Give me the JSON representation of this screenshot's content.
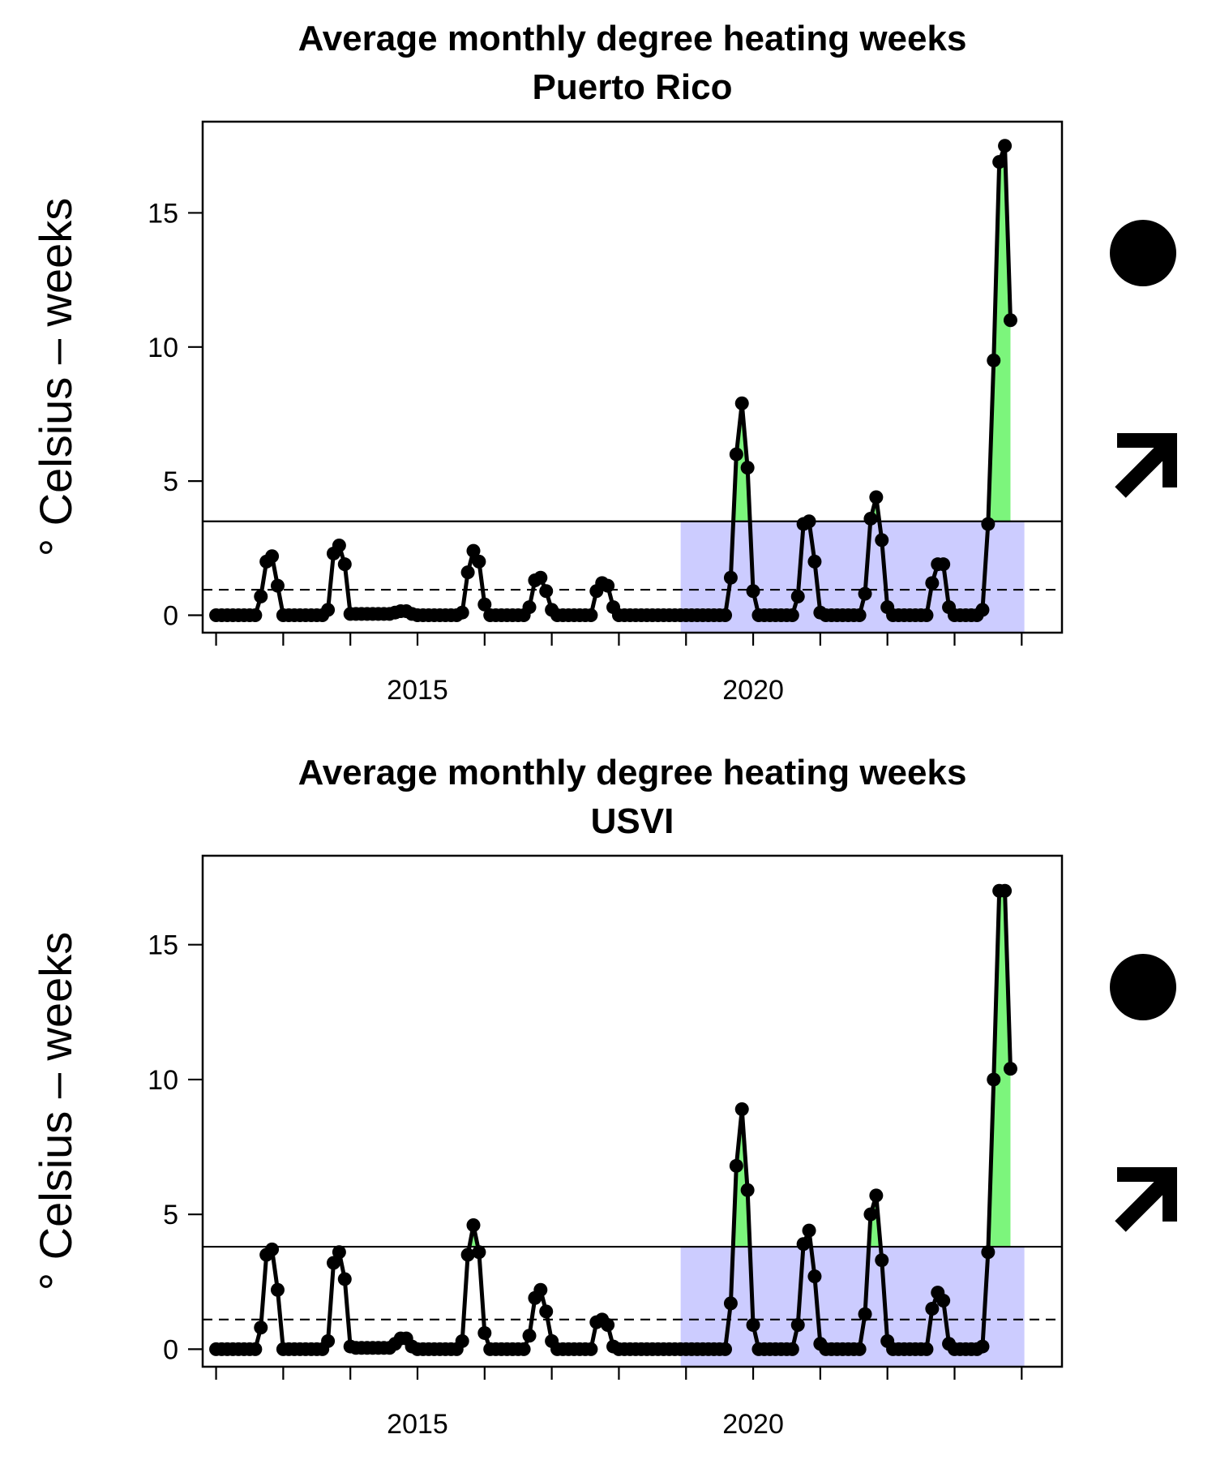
{
  "chart_data": [
    {
      "type": "line",
      "title": "Average monthly degree heating weeks",
      "subtitle": "Puerto Rico",
      "xlabel": "",
      "ylabel": "° Celsius – weeks",
      "xlim": [
        2011.8,
        2024.6
      ],
      "ylim": [
        -0.65,
        18.4
      ],
      "x_ticks": [
        2012,
        2013,
        2014,
        2015,
        2016,
        2017,
        2018,
        2019,
        2020,
        2021,
        2022,
        2023,
        2024
      ],
      "x_tick_labels": [
        {
          "value": 2015,
          "label": "2015"
        },
        {
          "value": 2020,
          "label": "2020"
        }
      ],
      "y_ticks": [
        0,
        5,
        10,
        15
      ],
      "y_tick_labels": [
        "0",
        "5",
        "10",
        "15"
      ],
      "x_start": 2012.0,
      "x_step": 0.08333,
      "values": [
        0,
        0,
        0,
        0,
        0,
        0,
        0,
        0,
        0.7,
        2.0,
        2.2,
        1.1,
        0,
        0,
        0,
        0,
        0,
        0,
        0,
        0,
        0.2,
        2.3,
        2.6,
        1.9,
        0.05,
        0.05,
        0.05,
        0.05,
        0.05,
        0.05,
        0.05,
        0.05,
        0.1,
        0.15,
        0.15,
        0.05,
        0,
        0,
        0,
        0,
        0,
        0,
        0,
        0,
        0.1,
        1.6,
        2.4,
        2.0,
        0.4,
        0,
        0,
        0,
        0,
        0,
        0,
        0,
        0.3,
        1.3,
        1.4,
        0.9,
        0.2,
        0,
        0,
        0,
        0,
        0,
        0,
        0,
        0.9,
        1.2,
        1.1,
        0.3,
        0,
        0,
        0,
        0,
        0,
        0,
        0,
        0,
        0,
        0,
        0,
        0,
        0,
        0,
        0,
        0,
        0,
        0,
        0,
        0,
        1.4,
        6.0,
        7.9,
        5.5,
        0.9,
        0,
        0,
        0,
        0,
        0,
        0,
        0,
        0.7,
        3.4,
        3.5,
        2.0,
        0.1,
        0,
        0,
        0,
        0,
        0,
        0,
        0,
        0.8,
        3.6,
        4.4,
        2.8,
        0.3,
        0,
        0,
        0,
        0,
        0,
        0,
        0,
        1.2,
        1.9,
        1.9,
        0.3,
        0,
        0,
        0,
        0,
        0,
        0.2,
        3.4,
        9.5,
        16.9,
        17.5,
        11.0
      ],
      "threshold_solid": 3.5,
      "threshold_dashed": 0.95,
      "recent_period": [
        2018.92,
        2024.04
      ],
      "indicators": {
        "status": "filled-circle",
        "trend": "up-arrow"
      },
      "colors": {
        "line": "#000000",
        "points": "#000000",
        "above_fill": "#7CF57C",
        "recent_shade": "#CCCCFF"
      }
    },
    {
      "type": "line",
      "title": "Average monthly degree heating weeks",
      "subtitle": "USVI",
      "xlabel": "",
      "ylabel": "° Celsius – weeks",
      "xlim": [
        2011.8,
        2024.6
      ],
      "ylim": [
        -0.65,
        18.3
      ],
      "x_ticks": [
        2012,
        2013,
        2014,
        2015,
        2016,
        2017,
        2018,
        2019,
        2020,
        2021,
        2022,
        2023,
        2024
      ],
      "x_tick_labels": [
        {
          "value": 2015,
          "label": "2015"
        },
        {
          "value": 2020,
          "label": "2020"
        }
      ],
      "y_ticks": [
        0,
        5,
        10,
        15
      ],
      "y_tick_labels": [
        "0",
        "5",
        "10",
        "15"
      ],
      "x_start": 2012.0,
      "x_step": 0.08333,
      "values": [
        0,
        0,
        0,
        0,
        0,
        0,
        0,
        0,
        0.8,
        3.5,
        3.7,
        2.2,
        0,
        0,
        0,
        0,
        0,
        0,
        0,
        0,
        0.3,
        3.2,
        3.6,
        2.6,
        0.1,
        0.05,
        0.05,
        0.05,
        0.05,
        0.05,
        0.05,
        0.05,
        0.2,
        0.4,
        0.4,
        0.1,
        0,
        0,
        0,
        0,
        0,
        0,
        0,
        0,
        0.3,
        3.5,
        4.6,
        3.6,
        0.6,
        0,
        0,
        0,
        0,
        0,
        0,
        0,
        0.5,
        1.9,
        2.2,
        1.4,
        0.3,
        0,
        0,
        0,
        0,
        0,
        0,
        0,
        1.0,
        1.1,
        0.9,
        0.1,
        0,
        0,
        0,
        0,
        0,
        0,
        0,
        0,
        0,
        0,
        0,
        0,
        0,
        0,
        0,
        0,
        0,
        0,
        0,
        0,
        1.7,
        6.8,
        8.9,
        5.9,
        0.9,
        0,
        0,
        0,
        0,
        0,
        0,
        0,
        0.9,
        3.9,
        4.4,
        2.7,
        0.2,
        0,
        0,
        0,
        0,
        0,
        0,
        0,
        1.3,
        5.0,
        5.7,
        3.3,
        0.3,
        0,
        0,
        0,
        0,
        0,
        0,
        0,
        1.5,
        2.1,
        1.8,
        0.2,
        0,
        0,
        0,
        0,
        0,
        0.1,
        3.6,
        10.0,
        17.0,
        17.0,
        10.4
      ],
      "threshold_solid": 3.8,
      "threshold_dashed": 1.1,
      "recent_period": [
        2018.92,
        2024.04
      ],
      "indicators": {
        "status": "filled-circle",
        "trend": "up-arrow"
      },
      "colors": {
        "line": "#000000",
        "points": "#000000",
        "above_fill": "#7CF57C",
        "recent_shade": "#CCCCFF"
      }
    }
  ]
}
